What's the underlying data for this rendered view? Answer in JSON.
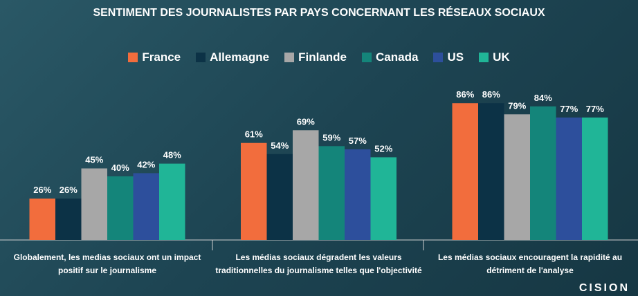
{
  "chart_data": {
    "type": "bar",
    "title": "SENTIMENT DES JOURNALISTES PAR PAYS CONCERNANT LES RÉSEAUX SOCIAUX",
    "categories": [
      "Globalement, les medias sociaux ont un impact positif sur le journalisme",
      "Les médias sociaux dégradent les valeurs traditionnelles du journalisme telles que l'objectivité",
      "Les médias sociaux encouragent la rapidité au détriment de l'analyse"
    ],
    "series": [
      {
        "name": "France",
        "color": "#f26d3d",
        "values": [
          26,
          61,
          86
        ],
        "value_labels": [
          "26%",
          "61%",
          "86%"
        ]
      },
      {
        "name": "Allemagne",
        "color": "#0c3246",
        "values": [
          26,
          54,
          86
        ],
        "value_labels": [
          "26%",
          "54%",
          "86%"
        ]
      },
      {
        "name": "Finlande",
        "color": "#a7a7a7",
        "values": [
          45,
          69,
          79
        ],
        "value_labels": [
          "45%",
          "69%",
          "79%"
        ]
      },
      {
        "name": "Canada",
        "color": "#14857a",
        "values": [
          40,
          59,
          84
        ],
        "value_labels": [
          "40%",
          "59%",
          "84%"
        ]
      },
      {
        "name": "US",
        "color": "#2d4f9c",
        "values": [
          42,
          57,
          77
        ],
        "value_labels": [
          "42%",
          "57%",
          "77%"
        ]
      },
      {
        "name": "UK",
        "color": "#20b597",
        "values": [
          48,
          52,
          77
        ],
        "value_labels": [
          "48%",
          "52%",
          "77%"
        ]
      }
    ],
    "legend": "top"
  },
  "logo": "CISION"
}
